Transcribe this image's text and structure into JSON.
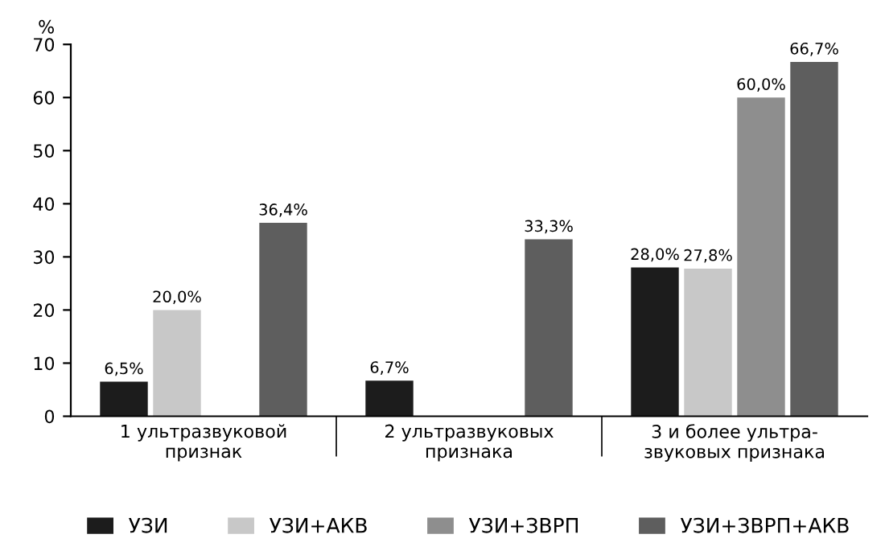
{
  "chart_data": {
    "type": "bar",
    "ylabel": "%",
    "categories": [
      "1 ультразвуковой\nпризнак",
      "2 ультразвуковых\nпризнака",
      "3 и более ультра-\nзвуковых признака"
    ],
    "series": [
      {
        "name": "УЗИ",
        "color": "#1c1c1c",
        "values": [
          6.5,
          6.7,
          28.0
        ],
        "value_labels": [
          "6,5%",
          "6,7%",
          "28,0%"
        ]
      },
      {
        "name": "УЗИ+АКВ",
        "color": "#c8c8c8",
        "values": [
          20.0,
          null,
          27.8
        ],
        "value_labels": [
          "20,0%",
          null,
          "27,8%"
        ]
      },
      {
        "name": "УЗИ+ЗВРП",
        "color": "#8e8e8e",
        "values": [
          null,
          null,
          60.0
        ],
        "value_labels": [
          null,
          null,
          "60,0%"
        ]
      },
      {
        "name": "УЗИ+ЗВРП+АКВ",
        "color": "#5e5e5e",
        "values": [
          36.4,
          33.3,
          66.7
        ],
        "value_labels": [
          "36,4%",
          "33,3%",
          "66,7%"
        ]
      }
    ],
    "ylim": [
      0,
      70
    ],
    "yticks": [
      0,
      10,
      20,
      30,
      40,
      50,
      60,
      70
    ],
    "grid": false,
    "legend": "bottom"
  }
}
